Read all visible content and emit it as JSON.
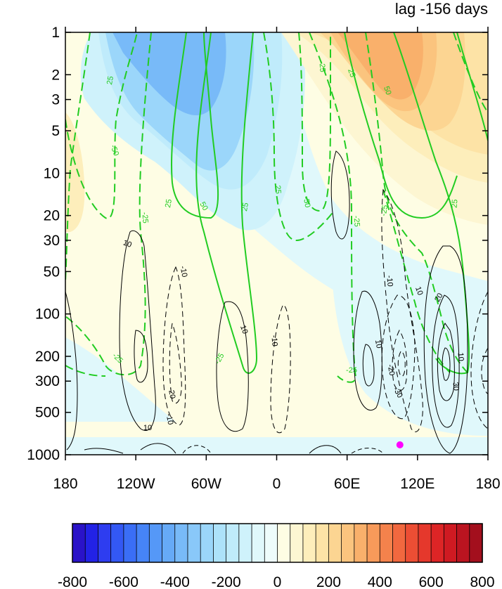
{
  "chart_data": {
    "type": "heatmap",
    "title": "lag -156 days",
    "x_axis": {
      "range": [
        -180,
        180
      ],
      "ticks": [
        -180,
        -120,
        -60,
        0,
        60,
        120,
        180
      ],
      "tick_labels": [
        "180",
        "120W",
        "60W",
        "0",
        "60E",
        "120E",
        "180"
      ]
    },
    "y_axis": {
      "scale": "log",
      "inverted": true,
      "range": [
        1,
        1000
      ],
      "ticks": [
        1,
        2,
        3,
        5,
        10,
        20,
        30,
        50,
        100,
        200,
        300,
        500,
        1000
      ],
      "tick_labels": [
        "1",
        "2",
        "3",
        "5",
        "10",
        "20",
        "30",
        "50",
        "100",
        "200",
        "300",
        "500",
        "1000"
      ]
    },
    "colorbar": {
      "range": [
        -800,
        800
      ],
      "levels": [
        -800,
        -750,
        -700,
        -650,
        -600,
        -550,
        -500,
        -450,
        -400,
        -350,
        -300,
        -250,
        -200,
        -150,
        -100,
        -50,
        0,
        50,
        100,
        150,
        200,
        250,
        300,
        350,
        400,
        450,
        500,
        550,
        600,
        650,
        700,
        750,
        800
      ],
      "tick_values": [
        -800,
        -600,
        -400,
        -200,
        0,
        200,
        400,
        600,
        800
      ],
      "tick_labels": [
        "-800",
        "-600",
        "-400",
        "-200",
        "0",
        "200",
        "400",
        "600",
        "800"
      ],
      "colors": [
        "#2a13c8",
        "#2222e6",
        "#2e3df0",
        "#3358f4",
        "#3a6ef6",
        "#4684f7",
        "#5598f7",
        "#66aaf7",
        "#78baf8",
        "#89c8f9",
        "#9bd6fa",
        "#ade2fa",
        "#bfebfb",
        "#cff2fb",
        "#e0f8fb",
        "#eefcfb",
        "#fefde4",
        "#fdf6d2",
        "#fdeebb",
        "#fde3a6",
        "#fcd592",
        "#fbc47e",
        "#f9b06b",
        "#f79a5a",
        "#f4824c",
        "#f1683f",
        "#ec4e34",
        "#e5382c",
        "#dd2526",
        "#cf1a22",
        "#bb1420",
        "#a30f1d"
      ]
    },
    "shading_regions": [
      {
        "description": "negative upper-stratosphere anomaly centered near 90W",
        "lon_center": -90,
        "lon_halfwidth": 72,
        "p_top": 1,
        "p_bottom": 60,
        "peak_value": -300
      },
      {
        "description": "positive upper-stratosphere anomaly centered near 90E",
        "lon_center": 90,
        "lon_halfwidth": 80,
        "p_top": 1,
        "p_bottom": 30,
        "peak_value": 300
      },
      {
        "description": "weak positive anomaly near the dateline west side",
        "lon_center": -170,
        "lon_halfwidth": 20,
        "p_top": 5,
        "p_bottom": 30,
        "peak_value": 100
      },
      {
        "description": "weak negative tropospheric anomaly",
        "lon_center": 120,
        "lon_halfwidth": 60,
        "p_top": 80,
        "p_bottom": 1000,
        "peak_value": -50
      }
    ],
    "green_contours": {
      "levels_labeled": [
        -50,
        -25,
        25,
        50
      ],
      "labels_shown": [
        "25",
        "-50",
        "-25",
        "25",
        "-25",
        "50",
        "-25",
        "25",
        "25",
        "-25",
        "-50",
        "-25",
        "50",
        "25",
        "-25",
        "25",
        "-25"
      ]
    },
    "black_contours": {
      "levels_labeled": [
        -30,
        -20,
        -10,
        10,
        20,
        30
      ],
      "labels_shown": [
        "10",
        "-10",
        "10",
        "-20",
        "-10",
        "10",
        "-10",
        "10",
        "-10",
        "10",
        "20",
        "-20",
        "-30",
        "10",
        "30"
      ]
    },
    "marker": {
      "lon": 105,
      "p": 850,
      "color": "#ff00ff"
    },
    "grid": false,
    "legend": "colorbar-bottom"
  }
}
